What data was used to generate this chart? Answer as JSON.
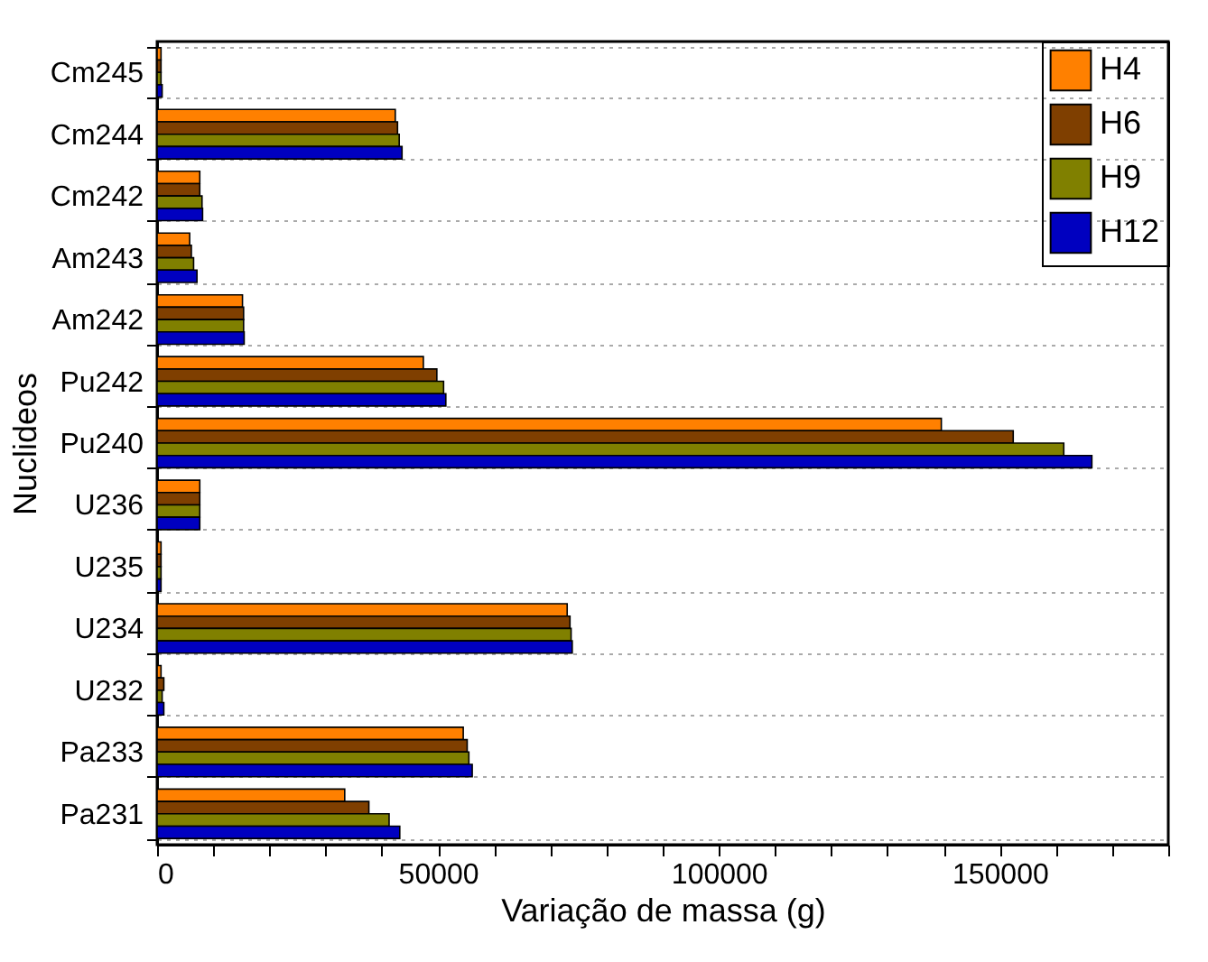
{
  "chart_data": {
    "type": "bar",
    "orientation": "horizontal",
    "xlabel": "Variação de massa (g)",
    "ylabel": "Nuclideos",
    "categories": [
      "Cm245",
      "Cm244",
      "Cm242",
      "Am243",
      "Am242",
      "Pu242",
      "Pu240",
      "U236",
      "U235",
      "U234",
      "U232",
      "Pa233",
      "Pa231"
    ],
    "series": [
      {
        "name": "H4",
        "color": "#ff8000",
        "values": [
          700,
          42400,
          7600,
          5800,
          15200,
          47400,
          139600,
          7600,
          700,
          73000,
          700,
          54500,
          33400
        ]
      },
      {
        "name": "H6",
        "color": "#7f3f00",
        "values": [
          700,
          42800,
          7600,
          6100,
          15400,
          49800,
          152400,
          7600,
          700,
          73500,
          1200,
          55200,
          37700
        ]
      },
      {
        "name": "H9",
        "color": "#808000",
        "values": [
          700,
          43100,
          8000,
          6500,
          15400,
          51000,
          161400,
          7600,
          700,
          73700,
          900,
          55500,
          41300
        ]
      },
      {
        "name": "H12",
        "color": "#0000c0",
        "values": [
          900,
          43600,
          8100,
          7100,
          15500,
          51400,
          166400,
          7600,
          700,
          73900,
          1200,
          56100,
          43200
        ]
      }
    ],
    "xlim": [
      0,
      180000
    ],
    "xticks": [
      0,
      {
        "value": 10000,
        "label": null
      },
      {
        "value": 20000,
        "label": null
      },
      {
        "value": 30000,
        "label": null
      },
      {
        "value": 40000,
        "label": null
      },
      50000,
      {
        "value": 60000,
        "label": null
      },
      {
        "value": 70000,
        "label": null
      },
      {
        "value": 80000,
        "label": null
      },
      {
        "value": 90000,
        "label": null
      },
      100000,
      {
        "value": 110000,
        "label": null
      },
      {
        "value": 120000,
        "label": null
      },
      {
        "value": 130000,
        "label": null
      },
      {
        "value": 140000,
        "label": null
      },
      150000,
      {
        "value": 160000,
        "label": null
      },
      {
        "value": 170000,
        "label": null
      },
      {
        "value": 180000,
        "label": null
      }
    ],
    "grid": "y",
    "legend": "top right"
  }
}
